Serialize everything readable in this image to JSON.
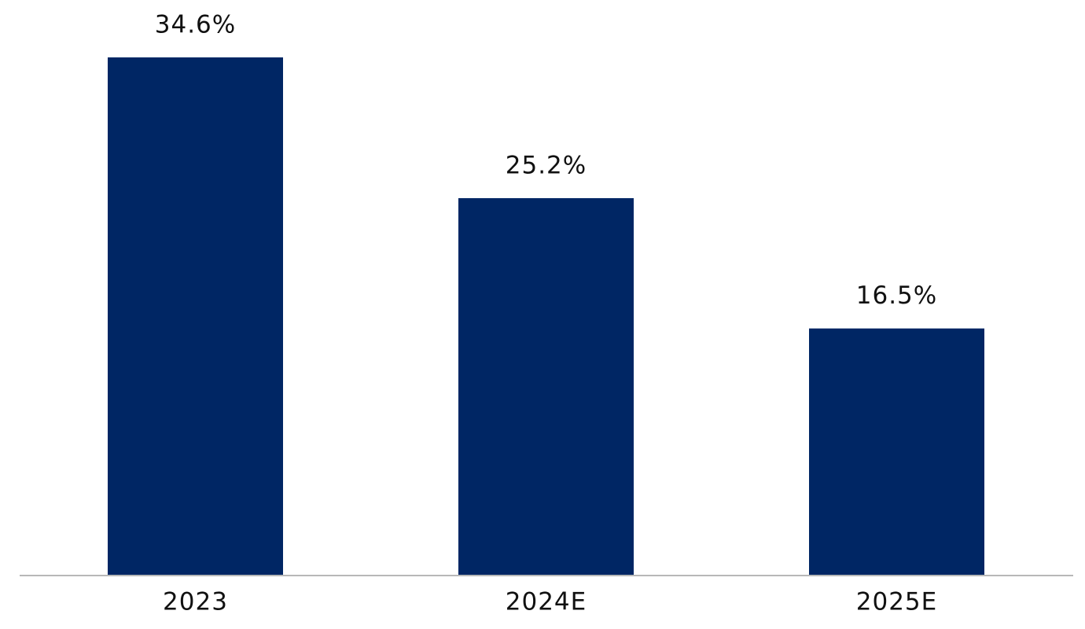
{
  "chart_data": {
    "type": "bar",
    "categories": [
      "2023",
      "2024E",
      "2025E"
    ],
    "values": [
      34.6,
      25.2,
      16.5
    ],
    "value_labels": [
      "34.6%",
      "25.2%",
      "16.5%"
    ],
    "color": "#002664"
  }
}
